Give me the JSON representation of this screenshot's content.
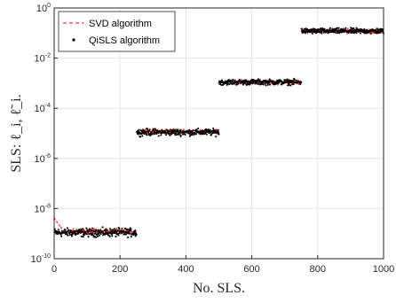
{
  "chart_data": {
    "type": "scatter",
    "title": "",
    "xlabel": "No. SLS.",
    "ylabel": "SLS: ℓ_i, ℓ̃_i.",
    "xlim": [
      0,
      1000
    ],
    "ylim": [
      1e-10,
      1
    ],
    "yscale": "log",
    "grid": true,
    "x_ticks": [
      "0",
      "200",
      "400",
      "600",
      "800",
      "1000"
    ],
    "y_ticks": [
      {
        "base": "10",
        "exp": "0",
        "value": 1
      },
      {
        "base": "10",
        "exp": "-2",
        "value": 0.01
      },
      {
        "base": "10",
        "exp": "-4",
        "value": 0.0001
      },
      {
        "base": "10",
        "exp": "-6",
        "value": 1e-06
      },
      {
        "base": "10",
        "exp": "-8",
        "value": 1e-08
      },
      {
        "base": "10",
        "exp": "-10",
        "value": 1e-10
      }
    ],
    "legend_position": "top-left",
    "series": [
      {
        "name": "SVD algorithm",
        "style": "dashed-line",
        "color": "#ff0000",
        "segments": [
          {
            "x_range": [
              1,
              250
            ],
            "median": 1.2e-09,
            "spread_decades": 0.12,
            "start_value": 4e-09,
            "start_decay_to": 30
          },
          {
            "x_range": [
              251,
              500
            ],
            "median": 1.2e-05,
            "spread_decades": 0.1
          },
          {
            "x_range": [
              501,
              750
            ],
            "median": 0.0011,
            "spread_decades": 0.1
          },
          {
            "x_range": [
              751,
              1000
            ],
            "median": 0.12,
            "spread_decades": 0.1
          }
        ]
      },
      {
        "name": "QiSLS algorithm",
        "style": "dots",
        "color": "#000000",
        "segments": [
          {
            "x_range": [
              1,
              250
            ],
            "median": 1.1e-09,
            "spread_decades": 0.15
          },
          {
            "x_range": [
              251,
              500
            ],
            "median": 1.1e-05,
            "spread_decades": 0.12
          },
          {
            "x_range": [
              501,
              750
            ],
            "median": 0.0011,
            "spread_decades": 0.1
          },
          {
            "x_range": [
              751,
              1000
            ],
            "median": 0.12,
            "spread_decades": 0.1
          }
        ]
      }
    ]
  },
  "colors": {
    "svd": "#ff0000",
    "qisls": "#000000",
    "grid": "#e6e6e6",
    "axis": "#262626"
  }
}
